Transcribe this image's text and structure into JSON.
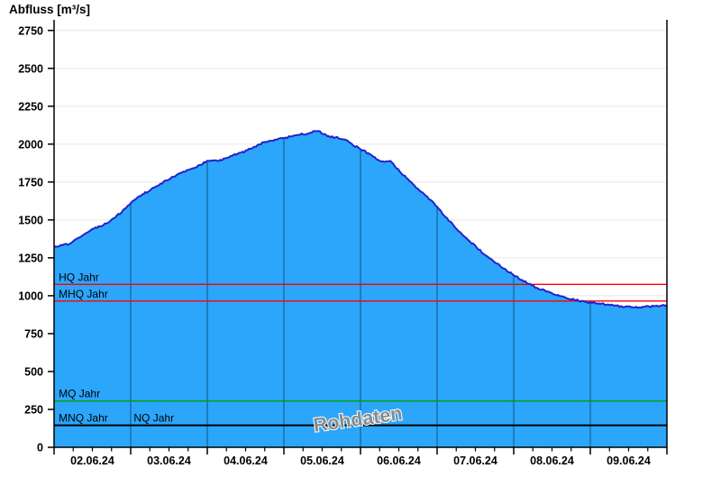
{
  "title": "Abfluss [m³/s]",
  "watermark": "Rohdaten",
  "colors": {
    "area_fill": "#2BA6FB",
    "curve_stroke": "#2222CC",
    "day_gridline": "#1B6BA6",
    "h_gridline": "#E8E8E8",
    "axis": "#000000",
    "hq_line": "#FF0000",
    "mhq_line": "#FF0000",
    "mq_line": "#00A000",
    "nq_line": "#000000",
    "watermark_gray": "#8A8A8A"
  },
  "chart_data": {
    "type": "area",
    "title": "Abfluss [m³/s]",
    "ylabel": "Abfluss [m³/s]",
    "xlabel": "",
    "ylim": [
      0,
      2820
    ],
    "y_ticks": [
      0,
      250,
      500,
      750,
      1000,
      1250,
      1500,
      1750,
      2000,
      2250,
      2500,
      2750
    ],
    "x_tick_labels": [
      "02.06.24",
      "03.06.24",
      "04.06.24",
      "05.06.24",
      "06.06.24",
      "07.06.24",
      "08.06.24",
      "09.06.24"
    ],
    "x_range_days": [
      0,
      8
    ],
    "minor_x_ticks_per_day": 4,
    "grid": {
      "horizontal": true,
      "vertical_day_lines_inside_area": true
    },
    "legend_position": "none",
    "watermark": "Rohdaten",
    "series": [
      {
        "name": "Abfluss Rohdaten",
        "unit": "m³/s",
        "points": [
          [
            0.0,
            1320
          ],
          [
            0.09,
            1335
          ],
          [
            0.18,
            1340
          ],
          [
            0.27,
            1365
          ],
          [
            0.35,
            1395
          ],
          [
            0.45,
            1425
          ],
          [
            0.54,
            1447
          ],
          [
            0.64,
            1465
          ],
          [
            0.73,
            1490
          ],
          [
            0.82,
            1525
          ],
          [
            0.92,
            1572
          ],
          [
            1.0,
            1613
          ],
          [
            1.09,
            1650
          ],
          [
            1.19,
            1678
          ],
          [
            1.29,
            1708
          ],
          [
            1.39,
            1738
          ],
          [
            1.49,
            1767
          ],
          [
            1.6,
            1797
          ],
          [
            1.71,
            1821
          ],
          [
            1.8,
            1840
          ],
          [
            1.91,
            1862
          ],
          [
            2.0,
            1892
          ],
          [
            2.09,
            1890
          ],
          [
            2.19,
            1898
          ],
          [
            2.28,
            1916
          ],
          [
            2.38,
            1933
          ],
          [
            2.48,
            1951
          ],
          [
            2.59,
            1975
          ],
          [
            2.68,
            2000
          ],
          [
            2.78,
            2017
          ],
          [
            2.88,
            2028
          ],
          [
            3.0,
            2040
          ],
          [
            3.11,
            2052
          ],
          [
            3.21,
            2064
          ],
          [
            3.32,
            2070
          ],
          [
            3.41,
            2088
          ],
          [
            3.47,
            2082
          ],
          [
            3.55,
            2058
          ],
          [
            3.65,
            2046
          ],
          [
            3.74,
            2040
          ],
          [
            3.84,
            2017
          ],
          [
            3.93,
            1987
          ],
          [
            4.02,
            1963
          ],
          [
            4.12,
            1933
          ],
          [
            4.21,
            1904
          ],
          [
            4.31,
            1880
          ],
          [
            4.39,
            1890
          ],
          [
            4.47,
            1845
          ],
          [
            4.56,
            1797
          ],
          [
            4.66,
            1750
          ],
          [
            4.75,
            1702
          ],
          [
            4.85,
            1661
          ],
          [
            4.94,
            1619
          ],
          [
            5.0,
            1590
          ],
          [
            5.09,
            1530
          ],
          [
            5.19,
            1477
          ],
          [
            5.28,
            1429
          ],
          [
            5.38,
            1382
          ],
          [
            5.47,
            1340
          ],
          [
            5.56,
            1299
          ],
          [
            5.66,
            1257
          ],
          [
            5.75,
            1222
          ],
          [
            5.85,
            1186
          ],
          [
            5.94,
            1157
          ],
          [
            6.0,
            1139
          ],
          [
            6.09,
            1109
          ],
          [
            6.19,
            1079
          ],
          [
            6.28,
            1056
          ],
          [
            6.38,
            1038
          ],
          [
            6.47,
            1020
          ],
          [
            6.56,
            1002
          ],
          [
            6.66,
            990
          ],
          [
            6.75,
            979
          ],
          [
            6.85,
            967
          ],
          [
            6.94,
            961
          ],
          [
            7.0,
            955
          ],
          [
            7.09,
            949
          ],
          [
            7.19,
            943
          ],
          [
            7.28,
            937
          ],
          [
            7.38,
            931
          ],
          [
            7.47,
            928
          ],
          [
            7.56,
            925
          ],
          [
            7.66,
            925
          ],
          [
            7.75,
            928
          ],
          [
            7.85,
            931
          ],
          [
            7.94,
            934
          ],
          [
            8.0,
            937
          ]
        ]
      }
    ],
    "reference_lines": [
      {
        "label": "HQ Jahr",
        "value": 1075,
        "color": "#FF0000",
        "label_day": 0.06
      },
      {
        "label": "MHQ Jahr",
        "value": 965,
        "color": "#FF0000",
        "label_day": 0.06
      },
      {
        "label": "MQ Jahr",
        "value": 305,
        "color": "#00A000",
        "label_day": 0.06
      },
      {
        "label": "MNQ Jahr",
        "value": 145,
        "color": "#000000",
        "label_day": 0.06
      },
      {
        "label": "NQ Jahr",
        "value": 145,
        "color": "#000000",
        "label_day": 1.04
      }
    ]
  }
}
